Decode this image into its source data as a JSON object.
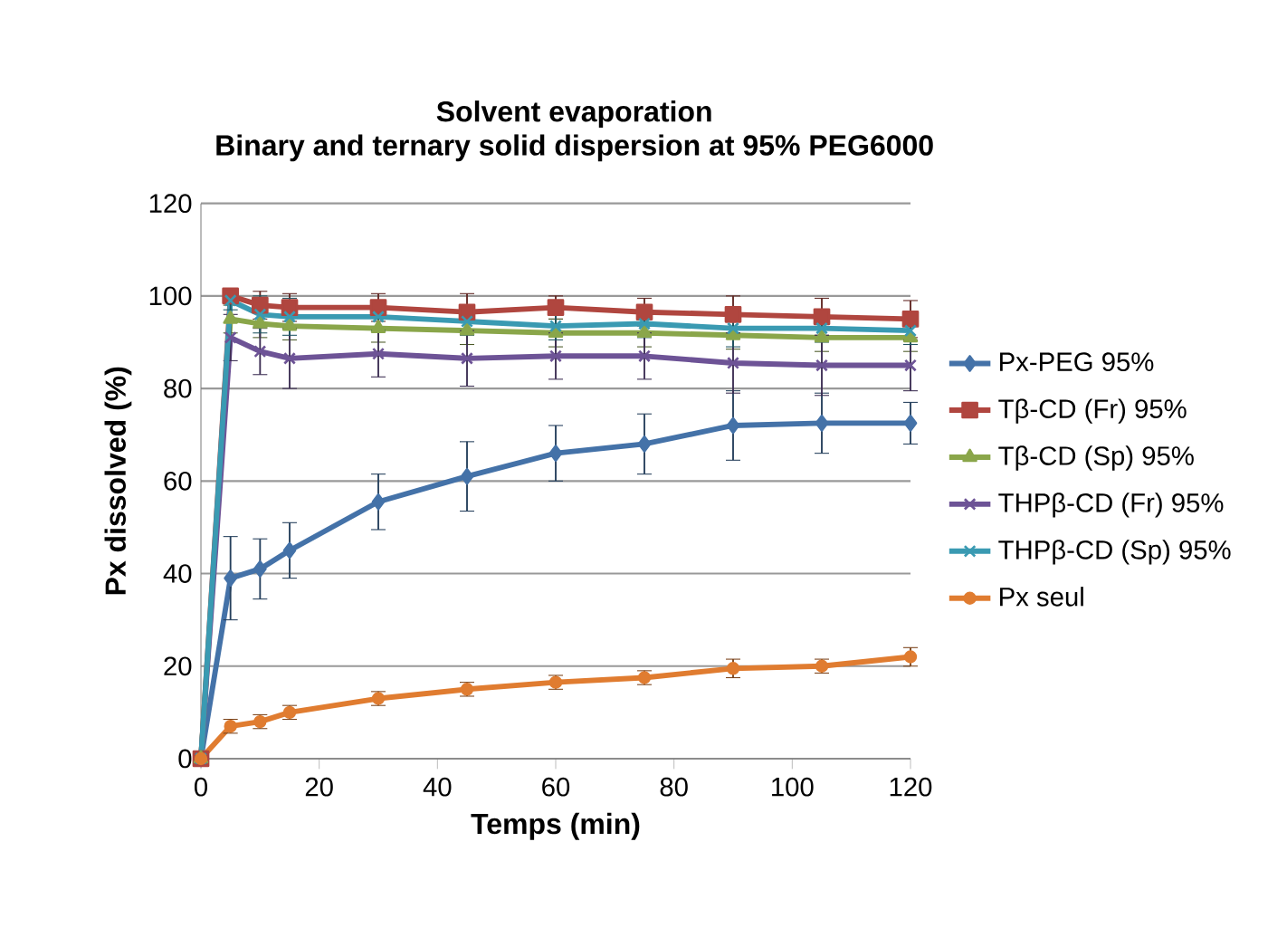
{
  "chart_data": {
    "type": "line",
    "title": "Solvent evaporation",
    "subtitle": "Binary and ternary solid dispersion at  95% PEG6000",
    "xlabel": "Temps (min)",
    "ylabel": "Px dissolved (%)",
    "x": [
      0,
      5,
      10,
      15,
      30,
      45,
      60,
      75,
      90,
      105,
      120
    ],
    "xlim": [
      0,
      120
    ],
    "xticks": [
      0,
      20,
      40,
      60,
      80,
      100,
      120
    ],
    "ylim": [
      0,
      120
    ],
    "yticks": [
      0,
      20,
      40,
      60,
      80,
      100,
      120
    ],
    "grid": "y",
    "legend": "right",
    "series": [
      {
        "name": "Px-PEG 95%",
        "color": "#4472a8",
        "marker": "diamond",
        "values": [
          0,
          39,
          41,
          45,
          55.5,
          61,
          66,
          68,
          72,
          72.5,
          72.5
        ],
        "errors": [
          null,
          9,
          6.5,
          6,
          6,
          7.5,
          6,
          6.5,
          7.5,
          6.5,
          4.5
        ]
      },
      {
        "name": "Tβ-CD (Fr) 95%",
        "color": "#b0463f",
        "marker": "square",
        "values": [
          0,
          100,
          98,
          97.5,
          97.5,
          96.5,
          97.5,
          96.5,
          96,
          95.5,
          95
        ],
        "errors": [
          null,
          1.5,
          3,
          3,
          3,
          4,
          2.5,
          3,
          4,
          4,
          4
        ]
      },
      {
        "name": "Tβ-CD (Sp) 95%",
        "color": "#8aa64a",
        "marker": "triangle",
        "values": [
          0,
          95,
          94,
          93.5,
          93,
          92.5,
          92,
          92,
          91.5,
          91,
          91
        ],
        "errors": [
          null,
          3,
          3,
          3,
          3,
          3,
          3,
          3,
          3,
          3,
          3
        ]
      },
      {
        "name": "THPβ-CD (Fr) 95%",
        "color": "#6d5396",
        "marker": "cross",
        "values": [
          0,
          91,
          88,
          86.5,
          87.5,
          86.5,
          87,
          87,
          85.5,
          85,
          85
        ],
        "errors": [
          null,
          5,
          5,
          6.5,
          5,
          6,
          5,
          5,
          6.5,
          6.5,
          5.5
        ]
      },
      {
        "name": "THPβ-CD (Sp) 95%",
        "color": "#3a9ab2",
        "marker": "cross",
        "values": [
          0,
          99,
          96,
          95.5,
          95.5,
          94.5,
          93.5,
          94,
          93,
          93,
          92.5
        ],
        "errors": [
          null,
          2,
          4,
          4,
          3,
          3,
          3,
          3,
          4,
          3,
          3
        ]
      },
      {
        "name": "Px seul",
        "color": "#e07c30",
        "marker": "circle",
        "values": [
          0,
          7,
          8,
          10,
          13,
          15,
          16.5,
          17.5,
          19.5,
          20,
          22
        ],
        "errors": [
          null,
          1.5,
          1.5,
          1.5,
          1.5,
          1.5,
          1.5,
          1.5,
          2,
          1.5,
          2
        ]
      }
    ]
  }
}
